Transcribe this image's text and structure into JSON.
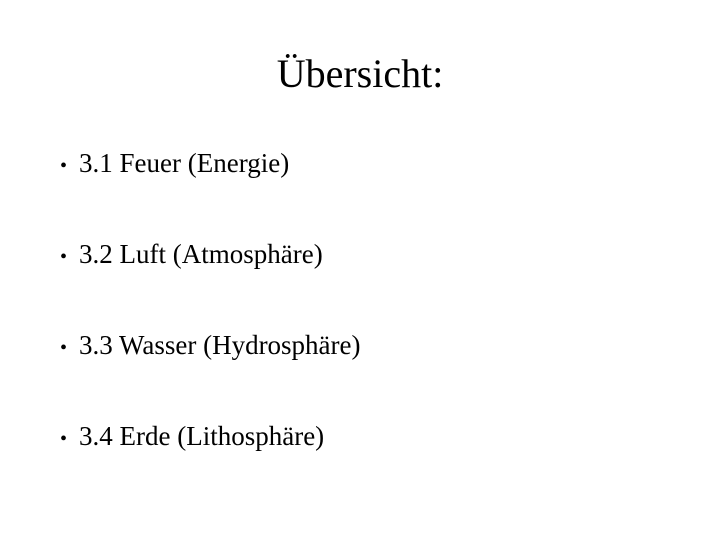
{
  "slide": {
    "title": "Übersicht:",
    "title_fontsize": 40,
    "bullet_fontsize": 27,
    "background_color": "#ffffff",
    "text_color": "#000000",
    "font_family": "Times New Roman",
    "bullets": [
      {
        "marker": "•",
        "text": "3.1 Feuer (Energie)"
      },
      {
        "marker": "•",
        "text": "3.2 Luft (Atmosphäre)"
      },
      {
        "marker": "•",
        "text": "3.3 Wasser (Hydrosphäre)"
      },
      {
        "marker": "•",
        "text": "3.4 Erde (Lithosphäre)"
      }
    ]
  }
}
